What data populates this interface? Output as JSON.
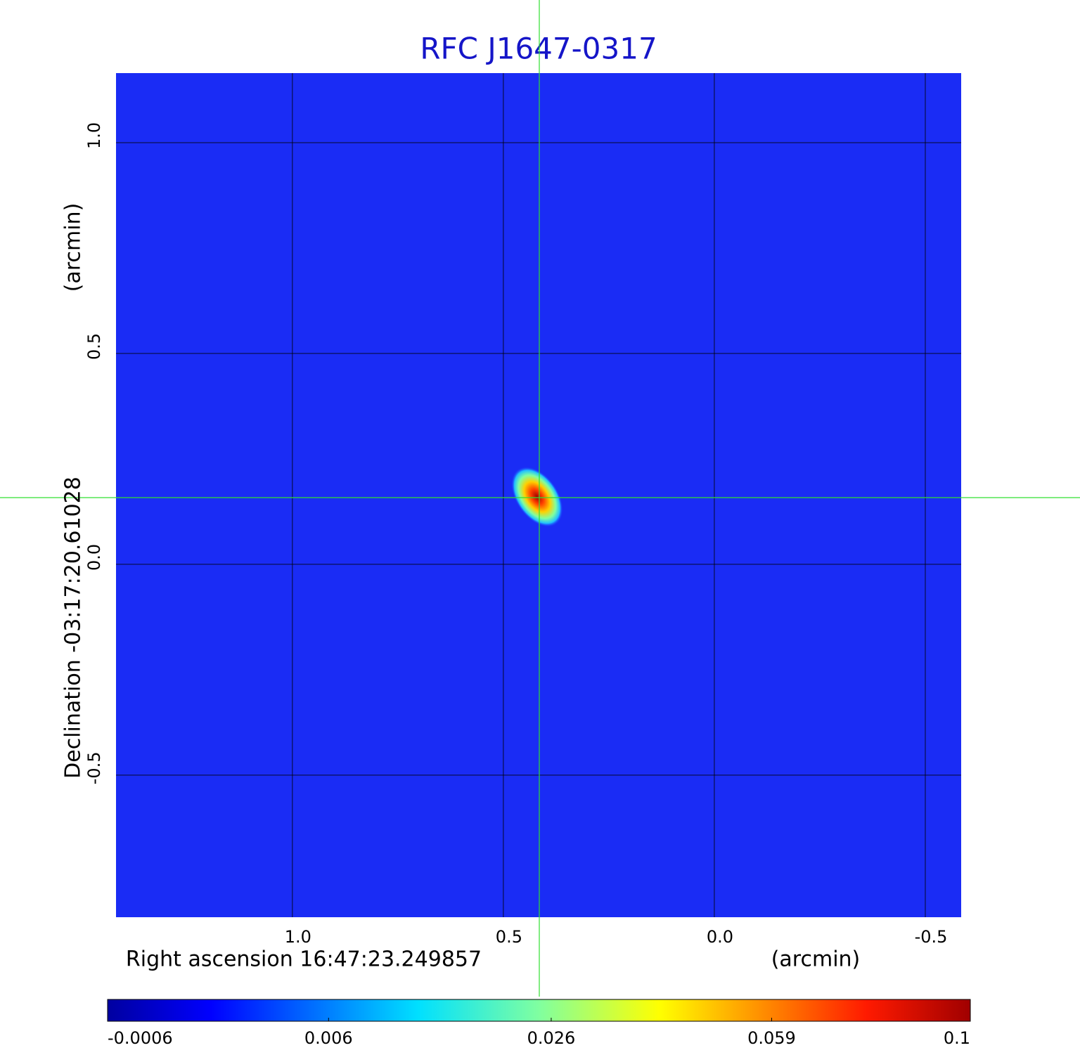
{
  "chart_data": {
    "type": "image",
    "title": "RFC J1647-0317",
    "x_label": "Right ascension  16:47:23.249857",
    "x_unit": "(arcmin)",
    "y_label": "Declination  -03:17:20.61028",
    "y_unit": "(arcmin)",
    "xlim": [
      1.418,
      -0.585
    ],
    "ylim": [
      -0.837,
      1.165
    ],
    "xticks": [
      {
        "value": 1,
        "label": "1.0"
      },
      0.5,
      {
        "value": 0,
        "label": "0.0"
      },
      -0.5
    ],
    "yticks": [
      {
        "value": 1,
        "label": "1.0"
      },
      0.5,
      {
        "value": 0,
        "label": "0.0"
      },
      -0.5
    ],
    "grid": true,
    "source": {
      "x": 0.42,
      "y": 0.16,
      "peak": 0.1
    },
    "colorbar_scale": "sqrt",
    "clim": [
      -0.0006,
      0.1
    ],
    "colorbar_ticks": [
      -0.0006,
      0.006,
      0.026,
      0.059,
      0.1
    ]
  }
}
